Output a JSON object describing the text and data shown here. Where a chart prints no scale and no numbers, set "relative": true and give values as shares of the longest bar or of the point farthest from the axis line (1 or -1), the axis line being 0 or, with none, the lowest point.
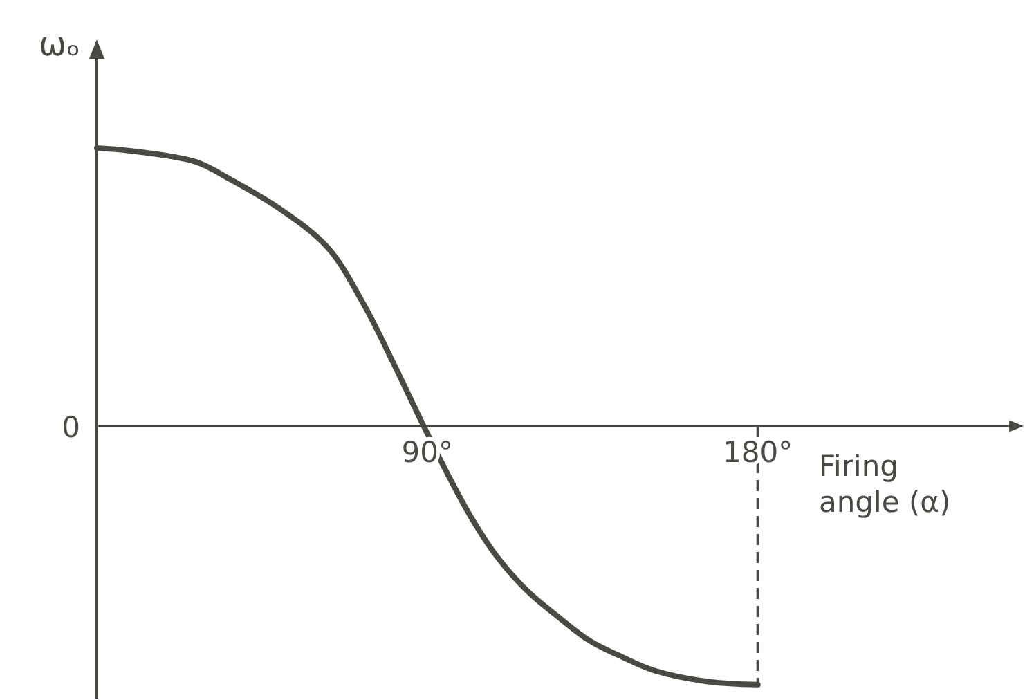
{
  "chart_data": {
    "type": "line",
    "relative": true,
    "ylabel": "ωₒ",
    "xlabel": "Firing angle (α)",
    "xlim": [
      0,
      252
    ],
    "xticks": [
      {
        "value": 90,
        "label": "90°"
      },
      {
        "value": 180,
        "label": "180°"
      }
    ],
    "annotations": [
      "0"
    ],
    "ref_lines": [
      {
        "axis": "x",
        "value": 180,
        "line_style": "dashed",
        "color": "#4a4a45"
      }
    ],
    "series": [
      {
        "color": "#4a4a45",
        "x": [
          0,
          9,
          27,
          36,
          50,
          63,
          73,
          81,
          89,
          97,
          102,
          109,
          117,
          126,
          134,
          143,
          152,
          167,
          180
        ],
        "values": [
          1,
          0.99,
          0.95,
          0.89,
          0.78,
          0.64,
          0.43,
          0.22,
          0,
          -0.21,
          -0.33,
          -0.47,
          -0.59,
          -0.69,
          -0.77,
          -0.83,
          -0.88,
          -0.92,
          -0.93
        ]
      }
    ]
  }
}
